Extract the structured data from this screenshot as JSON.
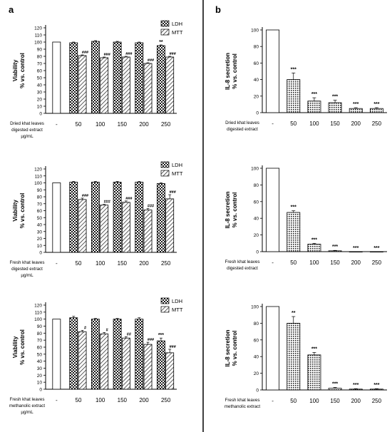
{
  "panel_labels": [
    "a",
    "b"
  ],
  "chart_data": [
    {
      "id": "a1",
      "type": "bar",
      "panel": "a",
      "categories": [
        "-",
        "50",
        "100",
        "150",
        "200",
        "250"
      ],
      "ylabel": [
        "Viability",
        "% vs. control"
      ],
      "ylim": [
        0,
        120
      ],
      "yticks": [
        0,
        10,
        20,
        30,
        40,
        50,
        60,
        70,
        80,
        90,
        100,
        110,
        120
      ],
      "xlabel": [
        "Dried khat leaves",
        "digested extract",
        "µg/mL"
      ],
      "legend": [
        "LDH",
        "MTT"
      ],
      "series": [
        {
          "name": "LDH",
          "values": [
            100,
            99,
            101,
            100,
            99,
            95
          ],
          "errors": [
            0,
            1,
            1,
            1,
            1,
            1
          ],
          "annotations": [
            "",
            "",
            "",
            "",
            "",
            "**"
          ]
        },
        {
          "name": "MTT",
          "values": null,
          "errors": null,
          "annotations": [
            "",
            "###",
            "###",
            "###",
            "###",
            "###"
          ]
        }
      ],
      "mtt_values": [
        81,
        78,
        79,
        70,
        79
      ],
      "mtt_errors": [
        1,
        1,
        1,
        1,
        1
      ]
    },
    {
      "id": "a2",
      "type": "bar",
      "panel": "a",
      "categories": [
        "-",
        "50",
        "100",
        "150",
        "200",
        "250"
      ],
      "ylabel": [
        "Viability",
        "% vs. control"
      ],
      "ylim": [
        0,
        120
      ],
      "yticks": [
        0,
        10,
        20,
        30,
        40,
        50,
        60,
        70,
        80,
        90,
        100,
        110,
        120
      ],
      "xlabel": [
        "Fresh khat leaves",
        "digested extract",
        "µg/mL"
      ],
      "legend": [
        "LDH",
        "MTT"
      ],
      "series": [
        {
          "name": "LDH",
          "values": [
            100,
            101,
            101,
            101,
            101,
            99
          ],
          "errors": [
            0,
            1,
            1,
            1,
            1,
            1
          ],
          "annotations": [
            "",
            "",
            "",
            "",
            "",
            ""
          ]
        },
        {
          "name": "MTT",
          "values": null,
          "errors": null,
          "annotations": [
            "",
            "###",
            "###",
            "###",
            "###",
            "###"
          ]
        }
      ],
      "mtt_values": [
        76,
        68,
        72,
        61,
        77
      ],
      "mtt_errors": [
        2,
        1,
        2,
        2,
        6
      ]
    },
    {
      "id": "a3",
      "type": "bar",
      "panel": "a",
      "categories": [
        "-",
        "50",
        "100",
        "150",
        "200",
        "250"
      ],
      "ylabel": [
        "Viability",
        "% vs. control"
      ],
      "ylim": [
        0,
        120
      ],
      "yticks": [
        0,
        10,
        20,
        30,
        40,
        50,
        60,
        70,
        80,
        90,
        100,
        110,
        120
      ],
      "xlabel": [
        "Fresh khat leaves",
        "methanolic extract",
        "µg/mL"
      ],
      "legend": [
        "LDH",
        "MTT"
      ],
      "series": [
        {
          "name": "LDH",
          "values": [
            100,
            102,
            100,
            100,
            100,
            69
          ],
          "errors": [
            0,
            2,
            1,
            1,
            2,
            4
          ],
          "annotations": [
            "",
            "",
            "",
            "",
            "",
            "***"
          ]
        },
        {
          "name": "MTT",
          "values": null,
          "errors": null,
          "annotations": [
            "",
            "#",
            "#",
            "##",
            "###",
            "###"
          ]
        }
      ],
      "mtt_values": [
        82,
        79,
        73,
        64,
        52
      ],
      "mtt_errors": [
        2,
        2,
        2,
        3,
        5
      ]
    },
    {
      "id": "b1",
      "type": "bar",
      "panel": "b",
      "categories": [
        "-",
        "50",
        "100",
        "150",
        "200",
        "250"
      ],
      "ylabel": [
        "IL-8 secretion",
        "% vs. control"
      ],
      "ylim": [
        0,
        100
      ],
      "yticks": [
        0,
        20,
        40,
        60,
        80,
        100
      ],
      "xlabel": [
        "Dried khat leaves",
        "digested extract"
      ],
      "series": [
        {
          "values": [
            100,
            40,
            14,
            12,
            5,
            5
          ],
          "errors": [
            0,
            8,
            4,
            3,
            1,
            1
          ],
          "annotations": [
            "",
            "***",
            "***",
            "***",
            "***",
            "***"
          ]
        }
      ]
    },
    {
      "id": "b2",
      "type": "bar",
      "panel": "b",
      "categories": [
        "-",
        "50",
        "100",
        "150",
        "200",
        "250"
      ],
      "ylabel": [
        "IL-8 secretion",
        "% vs. control"
      ],
      "ylim": [
        0,
        100
      ],
      "yticks": [
        0,
        20,
        40,
        60,
        80,
        100
      ],
      "xlabel": [
        "Fresh khat leaves",
        "digested extract"
      ],
      "series": [
        {
          "values": [
            100,
            47,
            9,
            1,
            0,
            0
          ],
          "errors": [
            0,
            2,
            1,
            0.5,
            0,
            0
          ],
          "annotations": [
            "",
            "***",
            "***",
            "***",
            "***",
            "***"
          ]
        }
      ]
    },
    {
      "id": "b3",
      "type": "bar",
      "panel": "b",
      "categories": [
        "-",
        "50",
        "100",
        "150",
        "200",
        "250"
      ],
      "ylabel": [
        "IL-8 secretion",
        "% vs. control"
      ],
      "ylim": [
        0,
        100
      ],
      "yticks": [
        0,
        20,
        40,
        60,
        80,
        100
      ],
      "xlabel": [
        "Fresh khat leaves",
        "methanolic extract"
      ],
      "series": [
        {
          "values": [
            100,
            80,
            42,
            2,
            1,
            1
          ],
          "errors": [
            0,
            8,
            3,
            1,
            0.5,
            0.5
          ],
          "annotations": [
            "",
            "**",
            "***",
            "***",
            "***",
            "***"
          ]
        }
      ]
    }
  ]
}
